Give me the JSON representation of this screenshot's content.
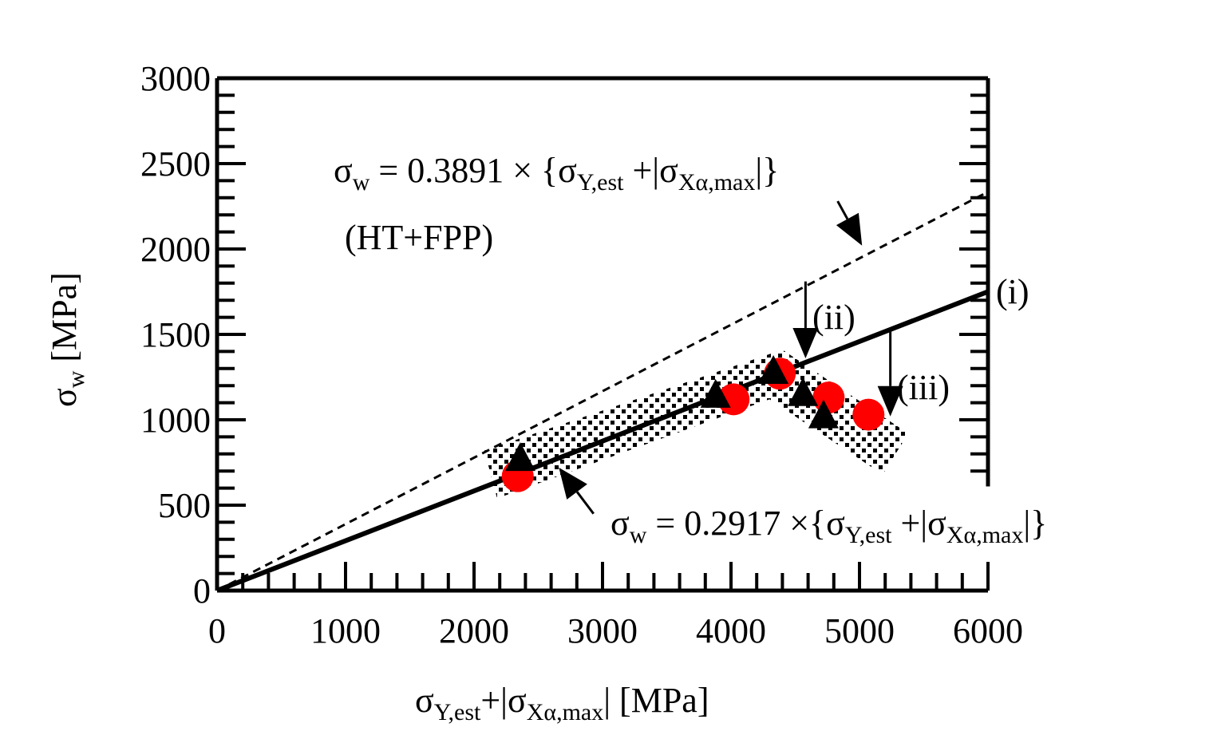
{
  "chart_data": {
    "type": "scatter",
    "xlabel": {
      "main": "σ",
      "sub1": "Y,est",
      "mid": "+|σ",
      "sub2": "Xα,max",
      "tail": "| [MPa]"
    },
    "ylabel": {
      "main": "σ",
      "sub": "w",
      "tail": " [MPa]"
    },
    "xlim": [
      0,
      6000
    ],
    "ylim": [
      0,
      3000
    ],
    "xticks": [
      0,
      1000,
      2000,
      3000,
      4000,
      5000,
      6000
    ],
    "yticks": [
      0,
      500,
      1000,
      1500,
      2000,
      2500,
      3000
    ],
    "x_minor_step": 200,
    "y_minor_step": 100,
    "lines": [
      {
        "name": "(i)",
        "slope": 0.2917,
        "style": "solid",
        "label": "(i)"
      },
      {
        "name": "HT+FPP fit",
        "slope": 0.3891,
        "style": "dashed"
      }
    ],
    "series": [
      {
        "name": "circles",
        "marker": "circle",
        "color": "#ff0000",
        "x": [
          2340,
          4020,
          4380,
          4760,
          5070
        ],
        "y": [
          670,
          1120,
          1270,
          1130,
          1030
        ]
      },
      {
        "name": "triangles",
        "marker": "triangle",
        "color": "#000000",
        "x": [
          2360,
          3880,
          4330,
          4560,
          4720
        ],
        "y": [
          780,
          1150,
          1290,
          1160,
          1030
        ]
      }
    ],
    "scatter_band": [
      [
        2080,
        820
      ],
      [
        4400,
        1410
      ],
      [
        5380,
        920
      ],
      [
        5180,
        680
      ],
      [
        4300,
        1120
      ],
      [
        2180,
        540
      ]
    ],
    "annotations": {
      "upper_eq": {
        "a": "σ",
        "a_sub": "w",
        "b": " = 0.3891 × {σ",
        "b_sub": "Y,est",
        "c": " +|σ",
        "c_sub": "Xα,max",
        "d": "|}"
      },
      "upper_group": "(HT+FPP)",
      "lower_eq": {
        "a": "σ",
        "a_sub": "w",
        "b": " = 0.2917 ×{σ",
        "b_sub": "Y,est",
        "c": " +|σ",
        "c_sub": "Xα,max",
        "d": "|}"
      },
      "label_i": "(i)",
      "label_ii": "(ii)",
      "label_iii": "(iii)"
    },
    "arrows": [
      {
        "name": "arrow-upper-eq",
        "from": [
          4830,
          2280
        ],
        "to": [
          5020,
          2020
        ]
      },
      {
        "name": "arrow-lower-eq",
        "from": [
          2930,
          450
        ],
        "to": [
          2660,
          720
        ]
      },
      {
        "name": "arrow-ii",
        "from": [
          4580,
          1810
        ],
        "to": [
          4580,
          1360
        ]
      },
      {
        "name": "arrow-iii",
        "from": [
          5240,
          1540
        ],
        "to": [
          5240,
          1020
        ]
      }
    ]
  }
}
